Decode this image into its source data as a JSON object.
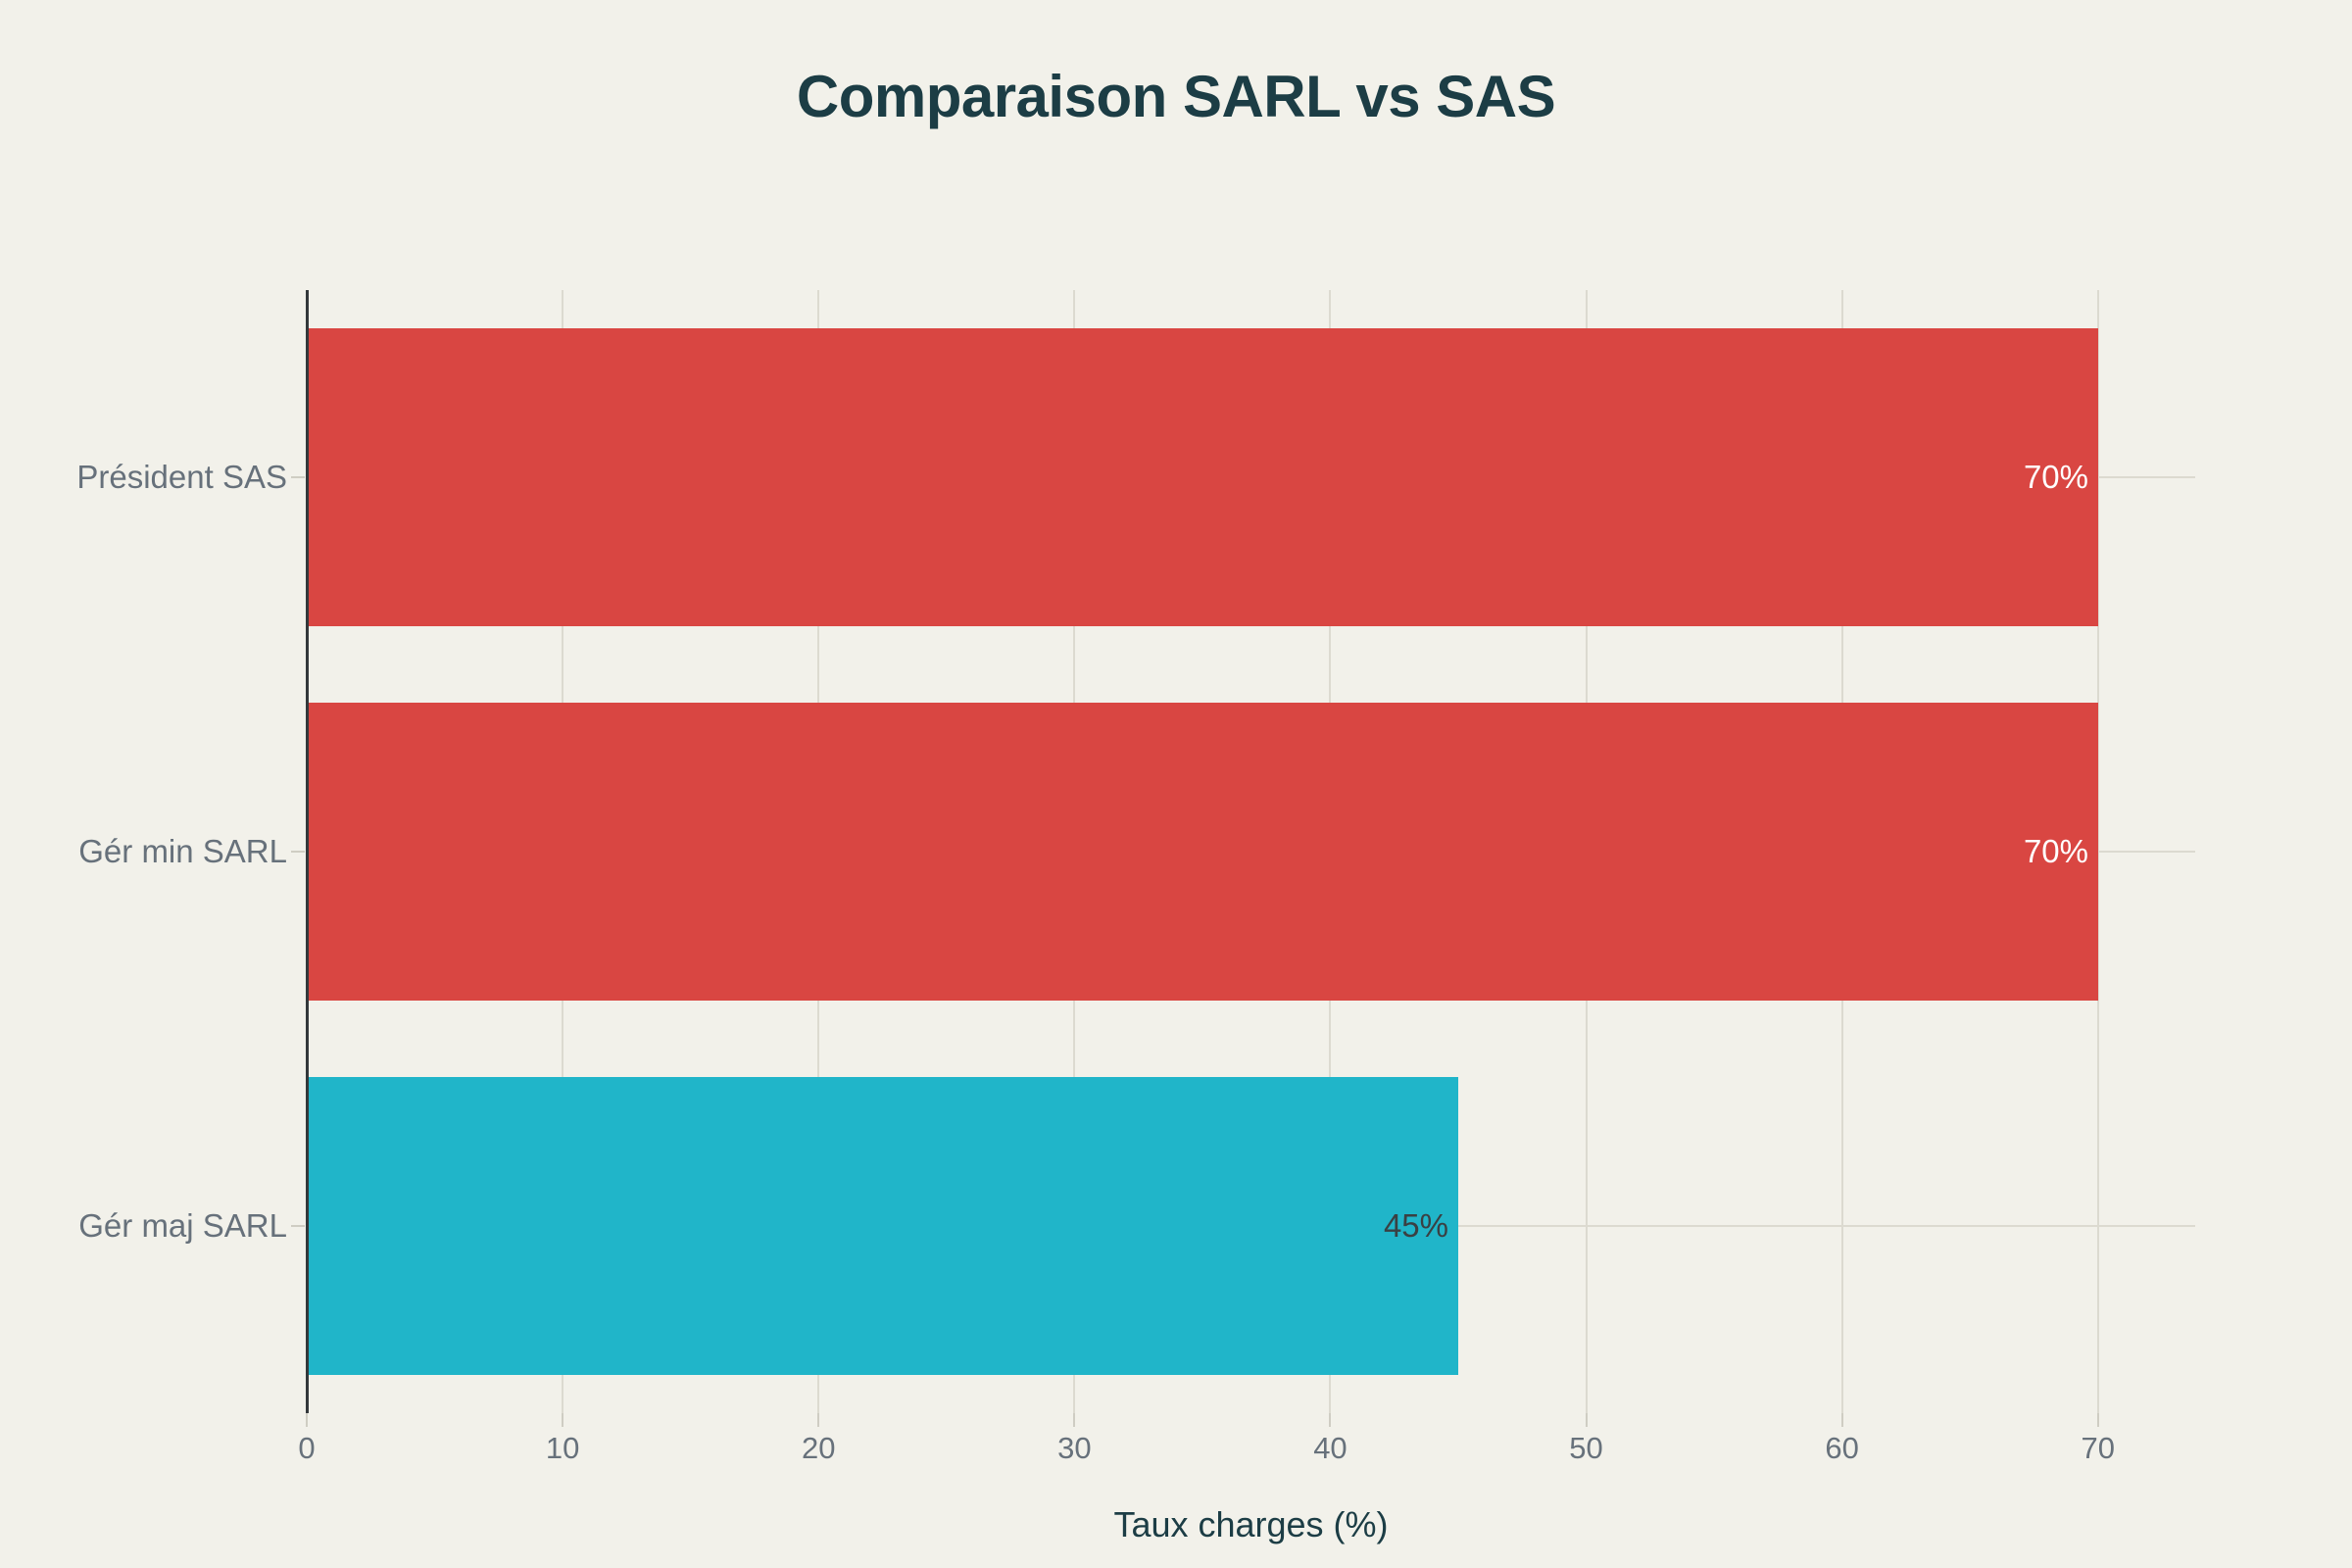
{
  "chart_data": {
    "type": "bar",
    "orientation": "horizontal",
    "title": "Comparaison SARL vs SAS",
    "xlabel": "Taux charges (%)",
    "ylabel": "",
    "categories": [
      "Président SAS",
      "Gér min SARL",
      "Gér maj SARL"
    ],
    "values": [
      70,
      70,
      45
    ],
    "value_labels": [
      "70%",
      "70%",
      "45%"
    ],
    "bar_colors": [
      "#d94642",
      "#d94642",
      "#20b5c9"
    ],
    "value_label_colors": [
      "#ffffff",
      "#ffffff",
      "#3a4043"
    ],
    "xticks": [
      0,
      10,
      20,
      30,
      40,
      50,
      60,
      70
    ],
    "xtick_labels": [
      "0",
      "10",
      "20",
      "30",
      "40",
      "50",
      "60",
      "70"
    ],
    "xlim": [
      0,
      73.8
    ],
    "grid": true,
    "legend_position": "none"
  },
  "colors": {
    "background": "#f2f1ea",
    "title_text": "#1c3d45",
    "axis_title_text": "#1c3d45",
    "tick_text": "#67717b",
    "category_text": "#67717b",
    "grid_line": "#dcdad0",
    "tick_mark": "#cfcdc3",
    "y_axis_line": "#33383b"
  }
}
